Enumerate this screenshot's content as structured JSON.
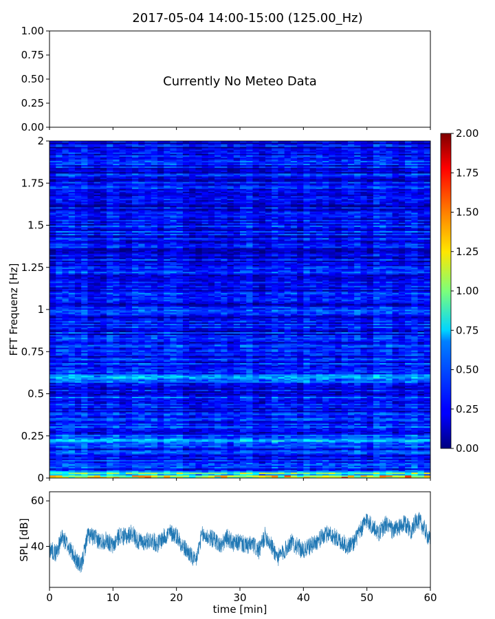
{
  "title": "2017-05-04 14:00-15:00 (125.00_Hz)",
  "chart_data": [
    {
      "type": "table",
      "panel": "meteo",
      "annotation": "Currently No Meteo Data",
      "ylim": [
        0,
        1
      ],
      "yticks": [
        "0.00",
        "0.25",
        "0.50",
        "0.75",
        "1.00"
      ]
    },
    {
      "type": "heatmap",
      "panel": "spectrogram",
      "ylabel": "FFT Frequenz [Hz]",
      "xlim": [
        0,
        60
      ],
      "ylim": [
        0,
        2
      ],
      "yticks": [
        "0",
        "0.25",
        "0.5",
        "0.75",
        "1",
        "1.25",
        "1.5",
        "1.75",
        "2"
      ],
      "colormap": "jet",
      "colorbar": {
        "range": [
          0,
          2
        ],
        "ticks": [
          "0.00",
          "0.25",
          "0.50",
          "0.75",
          "1.00",
          "1.25",
          "1.50",
          "1.75",
          "2.00"
        ]
      },
      "columns": 60,
      "rows": 240,
      "typical_level": 0.3,
      "features": [
        {
          "freq": 0.01,
          "level": 1.7,
          "note": "strong band at lowest frequency"
        },
        {
          "freq": 0.03,
          "level": 1.0
        },
        {
          "freq": 0.6,
          "level": 0.6,
          "note": "moderate band around 0.5-0.65 Hz"
        },
        {
          "freq": 0.22,
          "level": 0.55
        }
      ]
    },
    {
      "type": "line",
      "panel": "spl",
      "xlabel": "time [min]",
      "ylabel": "SPL [dB]",
      "xlim": [
        0,
        60
      ],
      "ylim": [
        22,
        64
      ],
      "xticks": [
        "0",
        "10",
        "20",
        "30",
        "40",
        "50",
        "60"
      ],
      "yticks": [
        "40",
        "60"
      ],
      "color": "#1f77b4",
      "series": [
        {
          "x": [
            0,
            1,
            2,
            3,
            4,
            5,
            6,
            7,
            8,
            9,
            10,
            11,
            12,
            13,
            14,
            15,
            16,
            17,
            18,
            19,
            20,
            21,
            22,
            23,
            24,
            25,
            26,
            27,
            28,
            29,
            30,
            31,
            32,
            33,
            34,
            35,
            36,
            37,
            38,
            39,
            40,
            41,
            42,
            43,
            44,
            45,
            46,
            47,
            48,
            49,
            50,
            51,
            52,
            53,
            54,
            55,
            56,
            57,
            58,
            59,
            60
          ],
          "values": [
            39,
            37,
            44,
            40,
            35,
            31,
            45,
            44,
            42,
            43,
            40,
            45,
            44,
            46,
            42,
            42,
            43,
            41,
            44,
            46,
            45,
            40,
            37,
            33,
            45,
            44,
            43,
            40,
            44,
            41,
            42,
            40,
            41,
            38,
            45,
            40,
            35,
            38,
            42,
            40,
            38,
            40,
            42,
            44,
            46,
            44,
            42,
            40,
            42,
            47,
            52,
            48,
            46,
            50,
            47,
            48,
            50,
            47,
            52,
            48,
            42
          ],
          "envelope": 4
        }
      ]
    }
  ]
}
